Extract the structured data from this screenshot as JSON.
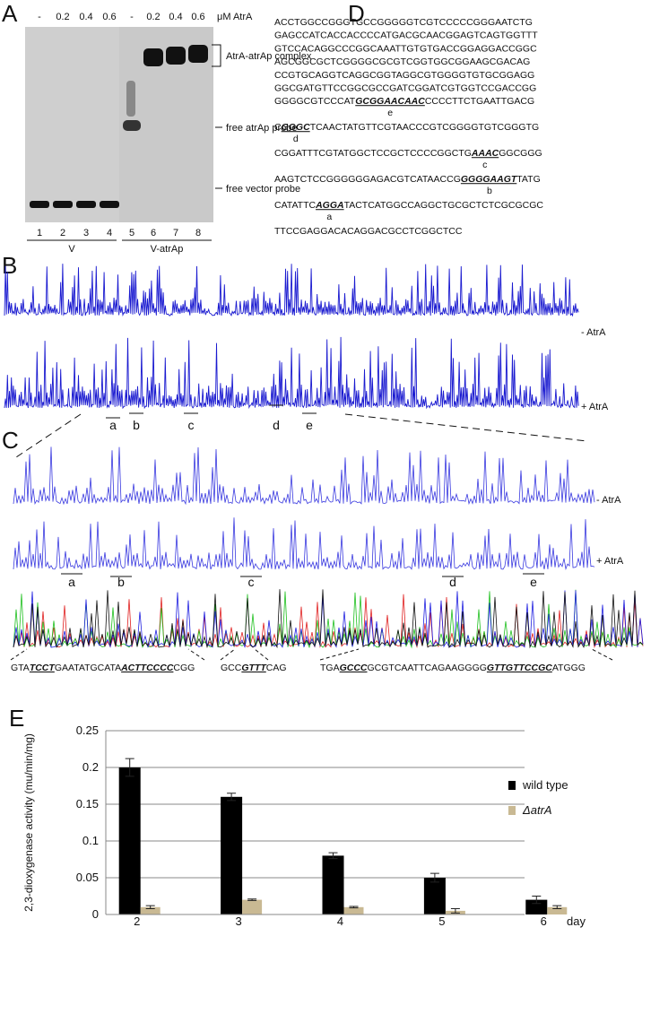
{
  "panel_a": {
    "label": "A",
    "concentrations": [
      "-",
      "0.2",
      "0.4",
      "0.6",
      "-",
      "0.2",
      "0.4",
      "0.6"
    ],
    "unit": "μM AtrA",
    "lanes": [
      "1",
      "2",
      "3",
      "4",
      "5",
      "6",
      "7",
      "8"
    ],
    "groups": [
      "V",
      "V-atrAp"
    ],
    "annotations": [
      "AtrA-atrAp complex",
      "free atrAp probe",
      "free vector probe"
    ]
  },
  "panel_b": {
    "label": "B",
    "trace_labels": [
      "- AtrA",
      "+ AtrA"
    ],
    "regions": [
      "a",
      "b",
      "c",
      "d",
      "e"
    ]
  },
  "panel_c": {
    "label": "C",
    "trace_labels": [
      "- AtrA",
      "+ AtrA"
    ],
    "regions": [
      "a",
      "b",
      "c",
      "d",
      "e"
    ],
    "sequences": [
      [
        "GTA",
        "TCCT",
        "GAATATGCATA",
        "ACTTCCCC",
        "CGG"
      ],
      [
        "GCC",
        "GTTT",
        "CAG"
      ],
      [
        "TGA",
        "GCCC",
        "GCGTCAATTCAGAAGGGG",
        "GTTGTTCCGC",
        "ATGGG"
      ]
    ]
  },
  "panel_d": {
    "label": "D",
    "lines": [
      {
        "text": "ACCTGGCCGGGTGCCGGGGGTCGTCCCCCGGGAATCTG"
      },
      {
        "text": "GAGCCATCACCACCCCATGACGCAACGGAGTCAGTGGTTT"
      },
      {
        "text": "GTCCACAGGCCCGGCAAATTGTGTGACCGGAGGACCGGC"
      },
      {
        "text": "AGCGGCGCTCGGGGCGCGTCGGTGGCGGAAGCGACAG"
      },
      {
        "text": "CCGTGCAGGTCAGGCGGTAGGCGTGGGGTGTGCGGAGG"
      },
      {
        "text": "GGCGATGTTCCGGCGCCGATCGGATCGTGGTCCGACCGG"
      },
      {
        "before": "GGGGCGTCCCAT",
        "site": "GCGGAACAAC",
        "after": "CCCCTTCTGAATTGACG",
        "site_label": "e"
      },
      {
        "before": "C",
        "site": "GGGC",
        "after": "TCAACTATGTTCGTAACCCGTCGGGGTGTCGGGTG",
        "site_label": "d"
      },
      {
        "before": "CGGATTTCGTATGGCTCCGCTCCCCGGCTG",
        "site": "AAAC",
        "after": "GGCGGG",
        "site_label": "c"
      },
      {
        "before": "AAGTCTCCGGGGGGAGACGTCATAACCG",
        "site": "GGGGAAGT",
        "after": "TATG",
        "site_label": "b"
      },
      {
        "before": "CATATTC",
        "site": "AGGA",
        "after": "TACTCATGGCCAGGCTGCGCTCTCGCGCGC",
        "site_label": "a"
      },
      {
        "text": "TTCCGAGGACACAGGACGCCTCGGCTCC"
      }
    ]
  },
  "chart_data": {
    "type": "bar",
    "label": "E",
    "y_label": "2,3-dioxygenase activity (mu/min/mg)",
    "x_label": "day",
    "categories": [
      "2",
      "3",
      "4",
      "5",
      "6"
    ],
    "series": [
      {
        "name": "wild type",
        "color": "#000000",
        "values": [
          0.2,
          0.16,
          0.08,
          0.05,
          0.02
        ],
        "errors": [
          0.012,
          0.005,
          0.004,
          0.006,
          0.005
        ]
      },
      {
        "name": "ΔatrA",
        "color": "#c9b993",
        "values": [
          0.01,
          0.02,
          0.01,
          0.005,
          0.01
        ],
        "errors": [
          0.002,
          0.001,
          0.001,
          0.003,
          0.002
        ]
      }
    ],
    "ylim": [
      0,
      0.25
    ],
    "yticks": [
      0,
      0.05,
      0.1,
      0.15,
      0.2,
      0.25
    ],
    "grid": true
  }
}
